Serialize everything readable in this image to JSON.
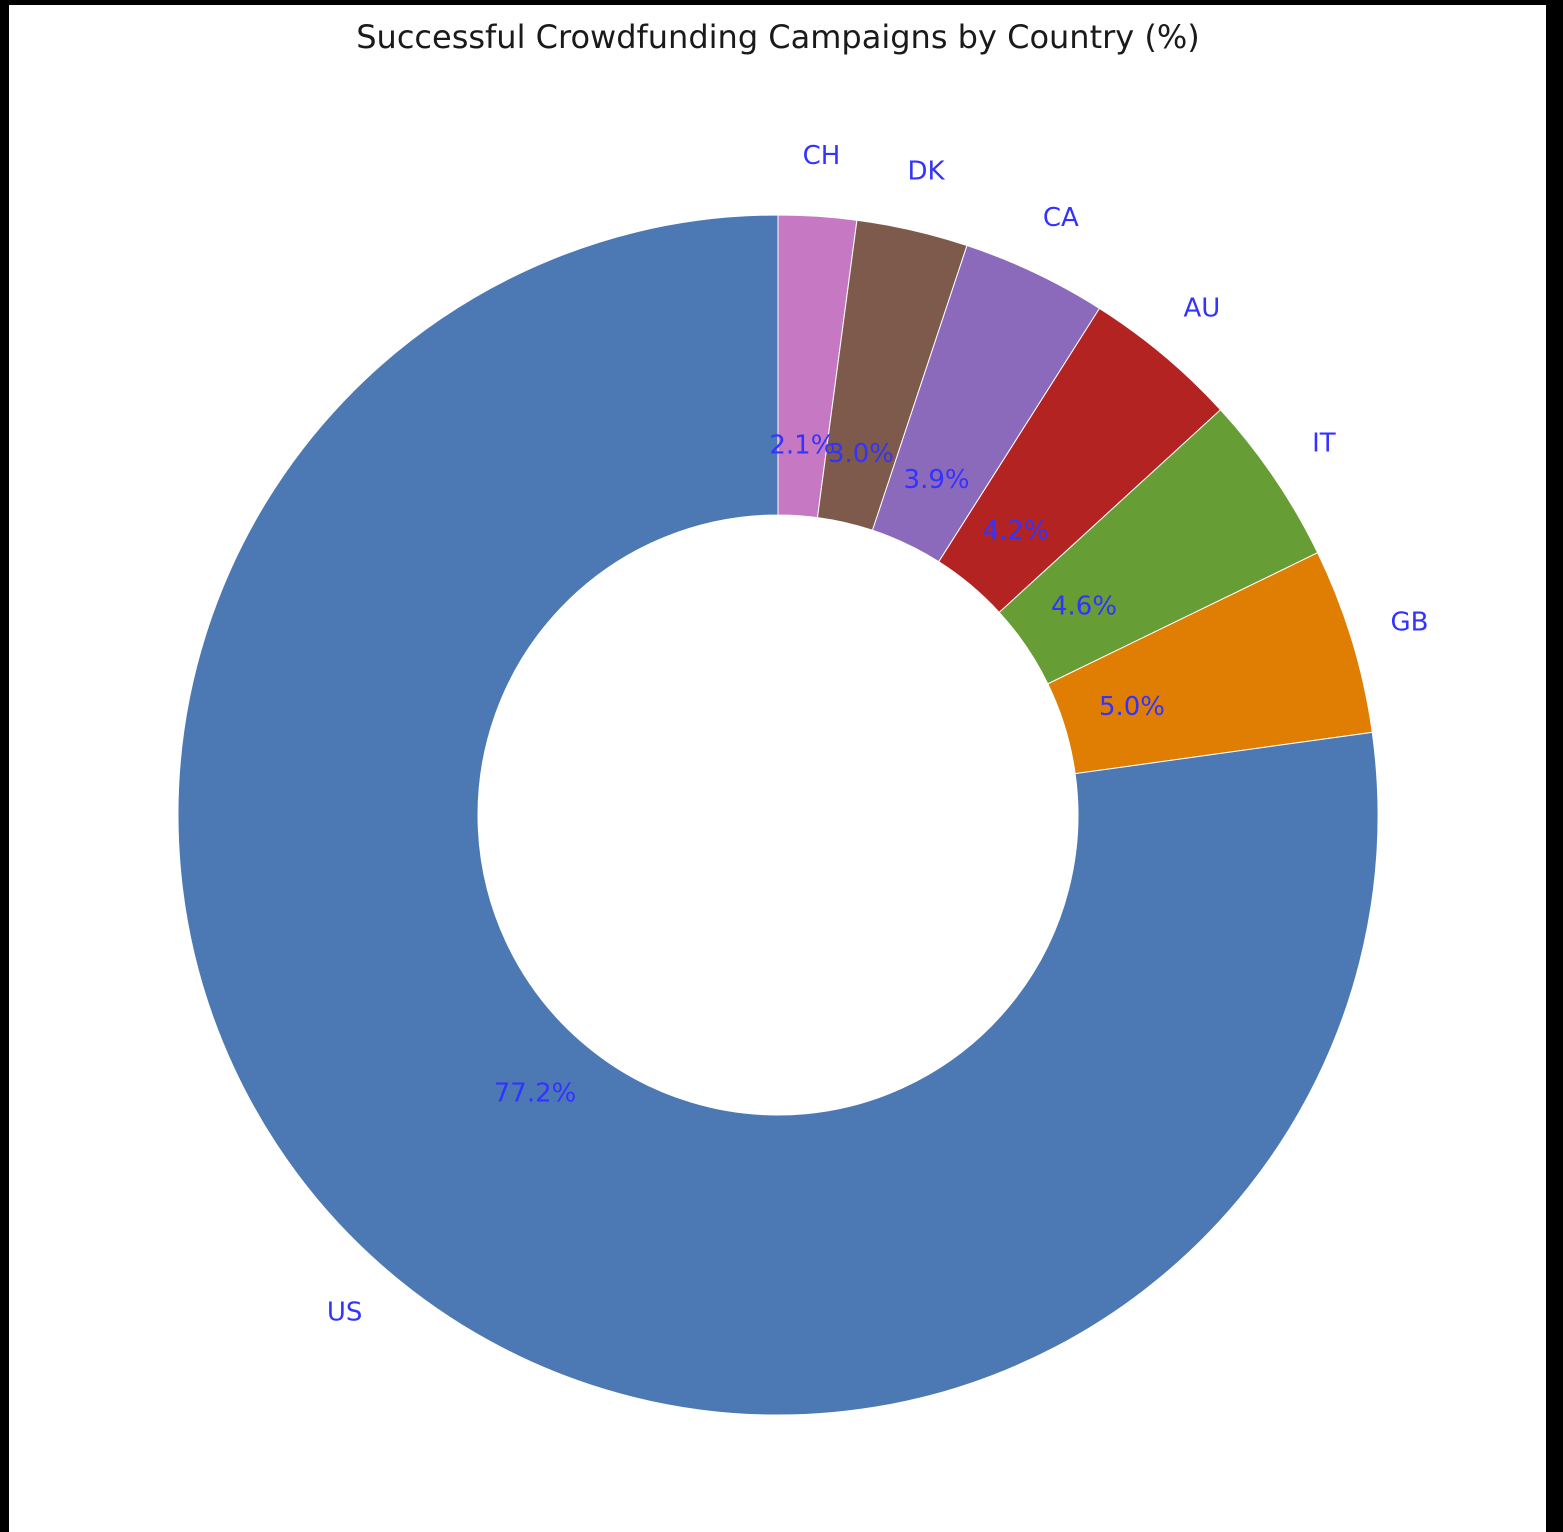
{
  "chart_data": {
    "type": "pie",
    "title": "Successful Crowdfunding Campaigns by Country (%)",
    "donut": true,
    "start_angle_deg": 90,
    "direction": "clockwise",
    "label_color": "#3333ff",
    "categories": [
      "CH",
      "DK",
      "CA",
      "AU",
      "IT",
      "GB",
      "US"
    ],
    "values": [
      2.1,
      3.0,
      3.9,
      4.2,
      4.6,
      5.0,
      77.2
    ],
    "value_labels": [
      "2.1%",
      "3.0%",
      "3.9%",
      "4.2%",
      "4.6%",
      "5.0%",
      "77.2%"
    ],
    "colors": [
      "#c678c2",
      "#7d5a4c",
      "#8b69bb",
      "#b22322",
      "#669d34",
      "#df7e02",
      "#4c79b3"
    ]
  }
}
